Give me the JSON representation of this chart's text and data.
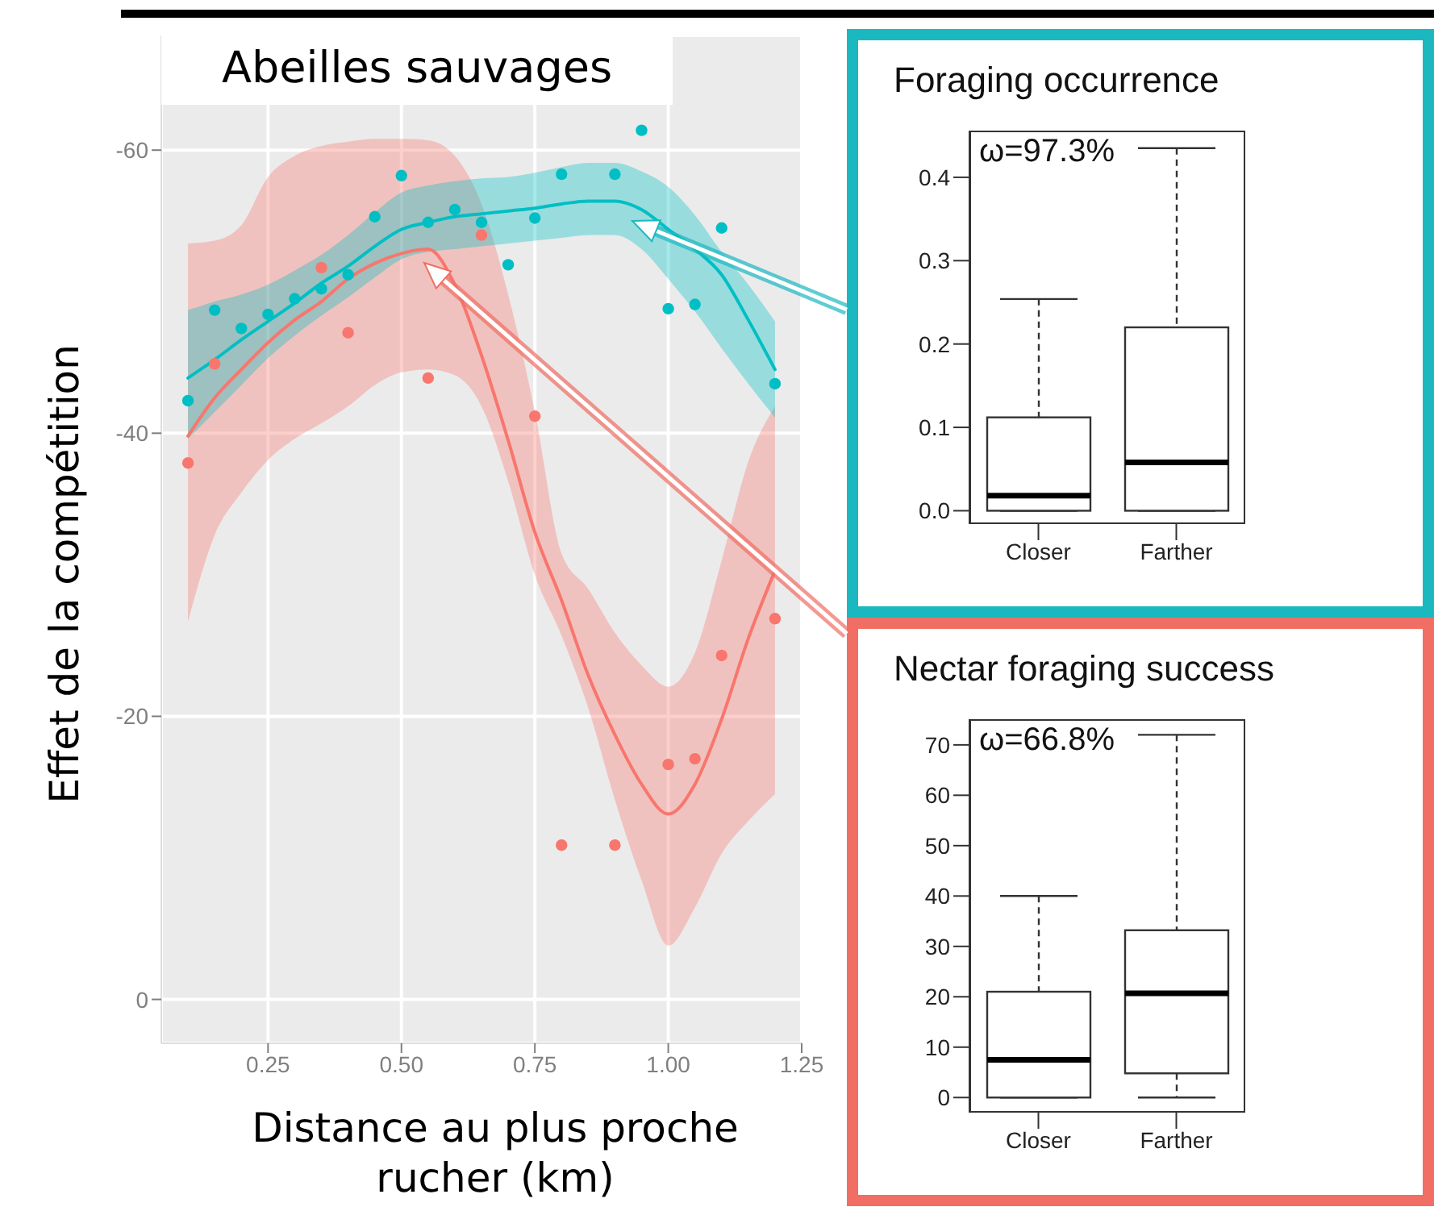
{
  "chart_data": [
    {
      "type": "scatter",
      "title": "Abeilles sauvages",
      "xlabel": "Distance au plus proche rucher (km)",
      "ylabel": "Effet de la compétition",
      "xlim": [
        0.05,
        1.25
      ],
      "ylim": [
        3.1,
        -68.1
      ],
      "xticks": [
        {
          "value": 0.25,
          "label": "0.25"
        },
        {
          "value": 0.5,
          "label": "0.50"
        },
        {
          "value": 0.75,
          "label": "0.75"
        },
        {
          "value": 1.0,
          "label": "1.00"
        },
        {
          "value": 1.25,
          "label": "1.25"
        }
      ],
      "yticks": [
        -60,
        -40,
        -20,
        0
      ],
      "grid": true,
      "series": [
        {
          "type": "line",
          "color": "#f8766d",
          "x": [
            0.1,
            0.15,
            0.2,
            0.25,
            0.3,
            0.35,
            0.4,
            0.45,
            0.5,
            0.55,
            0.6,
            0.65,
            0.7,
            0.75,
            0.8,
            0.85,
            0.9,
            0.95,
            1.0,
            1.05,
            1.1,
            1.15,
            1.2
          ],
          "values": [
            -39.8,
            -42.5,
            -44.5,
            -46.4,
            -48.0,
            -49.3,
            -50.9,
            -52.0,
            -52.7,
            -53.0,
            -50.5,
            -45.5,
            -39.5,
            -33.0,
            -28.2,
            -22.9,
            -18.7,
            -15.2,
            -13.1,
            -15.2,
            -19.8,
            -25.5,
            -30.3
          ],
          "lower": [
            -26.7,
            -32.8,
            -35.8,
            -38.1,
            -39.6,
            -40.7,
            -41.9,
            -43.4,
            -44.3,
            -44.5,
            -44.1,
            -41.9,
            -36.6,
            -30.0,
            -25.7,
            -20.6,
            -14.1,
            -8.4,
            -3.8,
            -6.5,
            -10.3,
            -12.6,
            -14.5
          ],
          "upper": [
            -53.4,
            -53.6,
            -54.7,
            -58.1,
            -59.6,
            -60.3,
            -60.6,
            -60.8,
            -60.8,
            -60.7,
            -59.6,
            -56.2,
            -49.8,
            -41.5,
            -31.5,
            -29.0,
            -25.9,
            -23.6,
            -22.1,
            -24.5,
            -31.0,
            -38.0,
            -41.9
          ]
        },
        {
          "type": "line",
          "color": "#00bfc4",
          "x": [
            0.1,
            0.15,
            0.2,
            0.25,
            0.3,
            0.35,
            0.4,
            0.45,
            0.5,
            0.55,
            0.6,
            0.65,
            0.7,
            0.75,
            0.8,
            0.85,
            0.9,
            0.95,
            1.0,
            1.05,
            1.1,
            1.15,
            1.2
          ],
          "values": [
            -43.9,
            -45.2,
            -46.6,
            -47.9,
            -49.2,
            -50.6,
            -51.8,
            -53.2,
            -54.4,
            -54.9,
            -55.3,
            -55.5,
            -55.7,
            -55.9,
            -56.2,
            -56.4,
            -56.4,
            -55.8,
            -54.4,
            -53.0,
            -51.2,
            -48.0,
            -44.5
          ],
          "lower": [
            -39.6,
            -41.5,
            -43.4,
            -45.3,
            -46.9,
            -48.3,
            -49.6,
            -51.0,
            -52.3,
            -52.8,
            -53.0,
            -53.2,
            -53.4,
            -53.6,
            -53.8,
            -54.0,
            -54.0,
            -53.0,
            -50.9,
            -48.6,
            -46.0,
            -43.5,
            -41.1
          ],
          "upper": [
            -48.7,
            -49.3,
            -49.8,
            -50.5,
            -51.5,
            -52.6,
            -54.0,
            -55.6,
            -57.0,
            -57.5,
            -57.8,
            -58.0,
            -58.1,
            -58.4,
            -58.8,
            -59.1,
            -59.1,
            -58.5,
            -57.4,
            -55.4,
            -52.8,
            -50.5,
            -47.9
          ]
        },
        {
          "type": "scatter",
          "color": "#f8766d",
          "marker": "circle",
          "x": [
            0.1,
            0.15,
            0.35,
            0.4,
            0.55,
            0.65,
            0.75,
            0.8,
            0.9,
            1.0,
            1.05,
            1.1,
            1.2
          ],
          "values": [
            -37.9,
            -44.9,
            -51.7,
            -47.1,
            -43.9,
            -54.0,
            -41.2,
            -10.9,
            -10.9,
            -16.6,
            -17.0,
            -24.3,
            -26.9
          ]
        },
        {
          "type": "scatter",
          "color": "#00bfc4",
          "marker": "circle",
          "x": [
            0.1,
            0.15,
            0.2,
            0.25,
            0.3,
            0.35,
            0.4,
            0.45,
            0.5,
            0.55,
            0.6,
            0.65,
            0.7,
            0.75,
            0.8,
            0.9,
            0.95,
            1.0,
            1.05,
            1.1,
            1.2
          ],
          "values": [
            -42.3,
            -48.7,
            -47.4,
            -48.4,
            -49.5,
            -50.2,
            -51.2,
            -55.3,
            -58.2,
            -54.9,
            -55.8,
            -54.9,
            -51.9,
            -55.2,
            -58.3,
            -58.3,
            -61.4,
            -48.8,
            -49.1,
            -54.5,
            -43.5
          ]
        }
      ]
    },
    {
      "type": "box",
      "title": "Foraging occurrence",
      "categories": [
        "Closer",
        "Farther"
      ],
      "ylim": [
        -0.016,
        0.456
      ],
      "yticks": [
        {
          "value": 0,
          "label": "0.0"
        },
        0.1,
        0.2,
        0.3,
        0.4
      ],
      "annotations": [
        "ω=97.3%"
      ],
      "boxes": [
        {
          "low": 0,
          "q1": 0,
          "median": 0.018,
          "q3": 0.112,
          "high": 0.254
        },
        {
          "low": 0,
          "q1": 0,
          "median": 0.058,
          "q3": 0.22,
          "high": 0.435
        }
      ]
    },
    {
      "type": "box",
      "title": "Nectar foraging success",
      "categories": [
        "Closer",
        "Farther"
      ],
      "ylim": [
        -3,
        75.1
      ],
      "yticks": [
        0,
        10,
        20,
        30,
        40,
        50,
        60,
        70
      ],
      "annotations": [
        "ω=66.8%"
      ],
      "boxes": [
        {
          "low": 0,
          "q1": 0,
          "median": 7.5,
          "q3": 21,
          "high": 40
        },
        {
          "low": 0,
          "q1": 4.8,
          "median": 20.7,
          "q3": 33.2,
          "high": 72
        }
      ]
    }
  ]
}
